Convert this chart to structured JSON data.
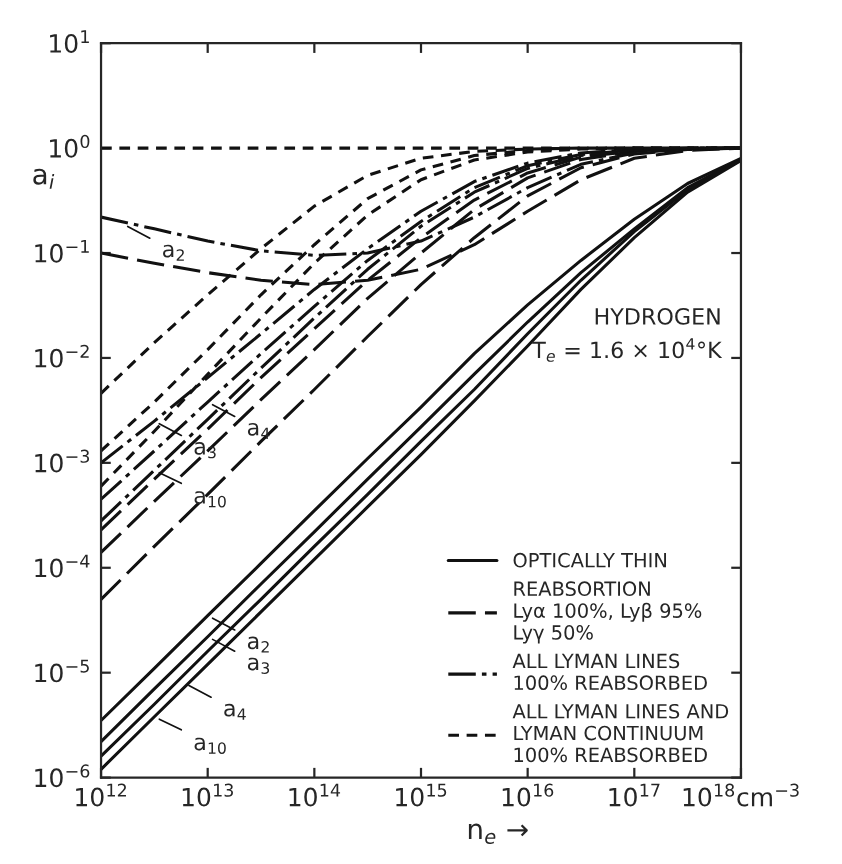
{
  "chart_data": {
    "type": "line",
    "xlabel": "n$_{e}$ →",
    "ylabel": "a$_{i}$",
    "x": [
      1000000000000.0,
      3160000000000.0,
      10000000000000.0,
      31600000000000.0,
      100000000000000.0,
      316000000000000.0,
      1000000000000000.0,
      3160000000000000.0,
      1e+16,
      3.16e+16,
      1e+17,
      3.16e+17,
      1e+18
    ],
    "log": "xy",
    "grid": false,
    "legend": "bottom right",
    "marker": "none",
    "xlim": [
      1000000000000.0,
      1e+18
    ],
    "ylim": [
      1e-06,
      10
    ],
    "xticks": [
      {
        "value": 1000000000000.0,
        "label": "10$^{12}$"
      },
      {
        "value": 10000000000000.0,
        "label": "10$^{13}$"
      },
      {
        "value": 100000000000000.0,
        "label": "10$^{14}$"
      },
      {
        "value": 1000000000000000.0,
        "label": "10$^{15}$"
      },
      {
        "value": 1e+16,
        "label": "10$^{16}$"
      },
      {
        "value": 1e+17,
        "label": "10$^{17}$"
      },
      {
        "value": 1e+18,
        "label": "10$^{18}$cm$^{−3}$"
      }
    ],
    "yticks": [
      {
        "value": 1e-06,
        "label": "10$^{−6}$"
      },
      {
        "value": 1e-05,
        "label": "10$^{−5}$"
      },
      {
        "value": 0.0001,
        "label": "10$^{−4}$"
      },
      {
        "value": 0.001,
        "label": "10$^{−3}$"
      },
      {
        "value": 0.01,
        "label": "10$^{−2}$"
      },
      {
        "value": 0.1,
        "label": "10$^{−1}$"
      },
      {
        "value": 1,
        "label": "10$^{0}$"
      },
      {
        "value": 10,
        "label": "10$^{1}$"
      }
    ],
    "series": [
      {
        "name": "OPTICALLY THIN",
        "color": "#111111",
        "line_style": "solid",
        "values": [
          3.5e-06,
          1.1e-05,
          3.5e-05,
          0.00011,
          0.00035,
          0.0011,
          0.0034,
          0.011,
          0.032,
          0.085,
          0.21,
          0.46,
          0.8
        ]
      },
      {
        "color": "#111111",
        "line_style": "solid",
        "values": [
          2.2e-06,
          7e-06,
          2.2e-05,
          7e-05,
          0.00022,
          0.0007,
          0.0022,
          0.007,
          0.022,
          0.065,
          0.17,
          0.42,
          0.78
        ]
      },
      {
        "color": "#111111",
        "line_style": "solid",
        "values": [
          1.6e-06,
          5e-06,
          1.6e-05,
          5e-05,
          0.00016,
          0.0005,
          0.0016,
          0.005,
          0.017,
          0.055,
          0.16,
          0.4,
          0.77
        ]
      },
      {
        "color": "#111111",
        "line_style": "solid",
        "values": [
          1.2e-06,
          3.8e-06,
          1.2e-05,
          3.8e-05,
          0.00012,
          0.00038,
          0.0012,
          0.0039,
          0.013,
          0.045,
          0.14,
          0.38,
          0.76
        ]
      },
      {
        "name": "REABSORTION\nLyα 100%, Lyβ 95%\nLyγ 50%",
        "color": "#111111",
        "line_style": "dashed",
        "values": [
          0.1,
          0.08,
          0.065,
          0.055,
          0.05,
          0.055,
          0.07,
          0.12,
          0.25,
          0.5,
          0.8,
          0.95,
          1.0
        ]
      },
      {
        "color": "#111111",
        "line_style": "dashed",
        "values": [
          0.00023,
          0.0007,
          0.0021,
          0.0065,
          0.019,
          0.055,
          0.14,
          0.32,
          0.58,
          0.82,
          0.94,
          0.99,
          1.0
        ]
      },
      {
        "color": "#111111",
        "line_style": "dashed",
        "values": [
          0.00014,
          0.00043,
          0.0013,
          0.004,
          0.012,
          0.037,
          0.1,
          0.26,
          0.52,
          0.78,
          0.93,
          0.98,
          1.0
        ]
      },
      {
        "color": "#111111",
        "line_style": "dashed",
        "values": [
          5e-05,
          0.00016,
          0.0005,
          0.0016,
          0.005,
          0.016,
          0.05,
          0.14,
          0.35,
          0.65,
          0.88,
          0.97,
          1.0
        ]
      },
      {
        "name": "ALL LYMAN LINES\n100% REABSORBED",
        "color": "#111111",
        "line_style": "dashdot",
        "values": [
          0.22,
          0.17,
          0.13,
          0.105,
          0.095,
          0.1,
          0.13,
          0.22,
          0.42,
          0.7,
          0.9,
          0.98,
          1.0
        ]
      },
      {
        "color": "#111111",
        "line_style": "dashdot",
        "values": [
          0.001,
          0.0025,
          0.0065,
          0.017,
          0.045,
          0.11,
          0.25,
          0.48,
          0.72,
          0.9,
          0.97,
          1.0,
          1.0
        ]
      },
      {
        "color": "#111111",
        "line_style": "dashdot",
        "values": [
          0.00045,
          0.0013,
          0.0038,
          0.011,
          0.031,
          0.085,
          0.2,
          0.42,
          0.68,
          0.87,
          0.96,
          0.99,
          1.0
        ]
      },
      {
        "color": "#111111",
        "line_style": "dashdot",
        "values": [
          0.00028,
          0.00085,
          0.0026,
          0.008,
          0.024,
          0.07,
          0.18,
          0.38,
          0.64,
          0.85,
          0.95,
          0.99,
          1.0
        ]
      },
      {
        "name": "ALL LYMAN LINES AND\nLYMAN CONTINUUM\n100% REABSORBED",
        "color": "#111111",
        "line_style": "short_dashed",
        "values": [
          1.0,
          1.0,
          1.0,
          1.0,
          1.0,
          1.0,
          1.0,
          1.0,
          1.0,
          1.0,
          1.0,
          1.0,
          1.0
        ]
      },
      {
        "color": "#111111",
        "line_style": "short_dashed",
        "values": [
          0.0046,
          0.014,
          0.04,
          0.11,
          0.28,
          0.55,
          0.8,
          0.93,
          0.98,
          1.0,
          1.0,
          1.0,
          1.0
        ]
      },
      {
        "color": "#111111",
        "line_style": "short_dashed",
        "values": [
          0.0013,
          0.0038,
          0.012,
          0.04,
          0.12,
          0.33,
          0.62,
          0.85,
          0.95,
          0.99,
          1.0,
          1.0,
          1.0
        ]
      },
      {
        "color": "#111111",
        "line_style": "short_dashed",
        "values": [
          0.0006,
          0.002,
          0.007,
          0.024,
          0.08,
          0.23,
          0.5,
          0.77,
          0.92,
          0.98,
          1.0,
          1.0,
          1.0
        ]
      }
    ],
    "annotations": [
      "HYDROGEN\nT$_{e}$ = 1.6 × 10$^{4}$°K",
      {
        "text": "a$_{2}$",
        "x": 1600000000000.0,
        "y": 0.19
      },
      {
        "text": "a$_{3}$",
        "x": 3160000000000.0,
        "y": 0.0025
      },
      {
        "text": "a$_{4}$",
        "x": 10000000000000.0,
        "y": 0.0038
      },
      {
        "text": "a$_{10}$",
        "x": 3160000000000.0,
        "y": 0.00085
      },
      {
        "text": "a$_{2}$",
        "x": 10000000000000.0,
        "y": 3.5e-05
      },
      {
        "text": "a$_{3}$",
        "x": 10000000000000.0,
        "y": 2.2e-05
      },
      {
        "text": "a$_{4}$",
        "x": 6000000000000.0,
        "y": 8e-06
      },
      {
        "text": "a$_{10}$",
        "x": 3160000000000.0,
        "y": 3.8e-06
      }
    ]
  }
}
